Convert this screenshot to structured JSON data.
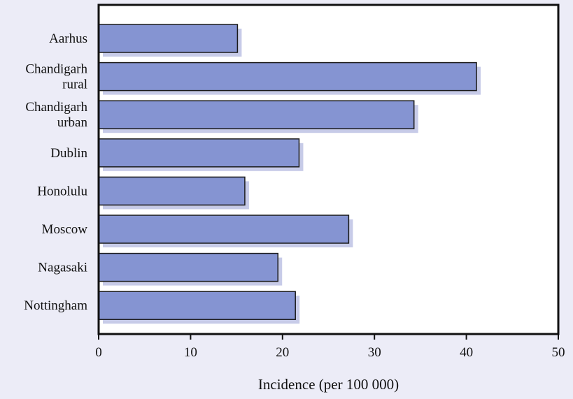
{
  "chart_data": {
    "type": "bar",
    "orientation": "horizontal",
    "categories": [
      [
        "Aarhus"
      ],
      [
        "Chandigarh",
        "rural"
      ],
      [
        "Chandigarh",
        "urban"
      ],
      [
        "Dublin"
      ],
      [
        "Honolulu"
      ],
      [
        "Moscow"
      ],
      [
        "Nagasaki"
      ],
      [
        "Nottingham"
      ]
    ],
    "values": [
      15.1,
      41.1,
      34.3,
      21.8,
      15.9,
      27.2,
      19.5,
      21.4
    ],
    "title": "",
    "xlabel": "Incidence (per 100  000)",
    "ylabel": "",
    "xlim": [
      0,
      50
    ],
    "xticks": [
      0,
      10,
      20,
      30,
      40,
      50
    ],
    "grid": false,
    "legend": "none",
    "colors": {
      "background": "#ececf7",
      "plot_area": "#ffffff",
      "bar_fill": "#8594d2",
      "bar_shadow": "#c7cbe8",
      "bar_stroke": "#1a1a1a",
      "frame": "#111111"
    }
  }
}
